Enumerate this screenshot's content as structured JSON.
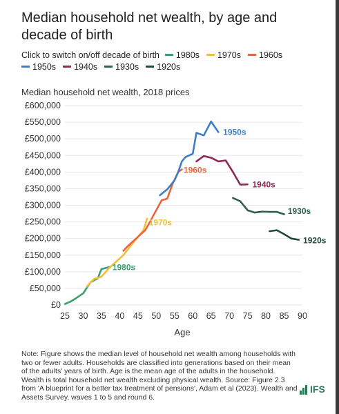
{
  "title": "Median household net wealth, by age and decade of birth",
  "legend": {
    "prompt": "Click to switch on/off decade of birth",
    "items": [
      {
        "label": "1980s",
        "color": "#3a9e6e"
      },
      {
        "label": "1970s",
        "color": "#f2bf3a"
      },
      {
        "label": "1960s",
        "color": "#e8643c"
      },
      {
        "label": "1950s",
        "color": "#3d7dc4"
      },
      {
        "label": "1940s",
        "color": "#8e2a56"
      },
      {
        "label": "1930s",
        "color": "#2f5f50"
      },
      {
        "label": "1920s",
        "color": "#1f4a3a"
      }
    ]
  },
  "subtitle": "Median household net wealth, 2018 prices",
  "xlabel": "Age",
  "note": "Note: Figure shows the median level of household net wealth among households with two or fewer adults. Households are classified into generations based on their mean of the adults' years of birth. Age is the mean age of the adults in the household. Wealth is total household net wealth excluding physical wealth. Source: Figure 2.3 from 'A blueprint for a better tax treatment of pensions', Adam et al (2023). Wealth and Assets Survey, waves 1 to 5 and round 6.",
  "logo": "IFS",
  "chart_data": {
    "type": "line",
    "title": "Median household net wealth, by age and decade of birth",
    "ylabel": "Median household net wealth, 2018 prices",
    "xlabel": "Age",
    "xlim": [
      25,
      90
    ],
    "ylim": [
      0,
      600000
    ],
    "x_ticks": [
      "25",
      "30",
      "35",
      "40",
      "45",
      "50",
      "55",
      "60",
      "65",
      "70",
      "75",
      "80",
      "85",
      "90"
    ],
    "y_ticks": [
      "£0",
      "£50,000",
      "£100,000",
      "£150,000",
      "£200,000",
      "£250,000",
      "£300,000",
      "£350,000",
      "£400,000",
      "£450,000",
      "£500,000",
      "£550,000",
      "£600,000"
    ],
    "grid": true,
    "series": [
      {
        "name": "1980s",
        "color": "#3a9e6e",
        "x": [
          25,
          26.5,
          28,
          30,
          32,
          34,
          35,
          37.5
        ],
        "y": [
          3000,
          10000,
          20000,
          35000,
          68000,
          80000,
          108000,
          115000
        ]
      },
      {
        "name": "1970s",
        "color": "#f2bf3a",
        "x": [
          31,
          32,
          33,
          35,
          37,
          39,
          41,
          43,
          45,
          46.5,
          47.5
        ],
        "y": [
          55000,
          68000,
          78000,
          85000,
          110000,
          130000,
          150000,
          178000,
          205000,
          225000,
          260000
        ]
      },
      {
        "name": "1960s",
        "color": "#e8643c",
        "x": [
          41,
          42,
          43.5,
          45,
          47,
          48.5,
          50,
          51.5,
          53,
          54.5,
          56,
          57
        ],
        "y": [
          163000,
          175000,
          190000,
          205000,
          225000,
          255000,
          285000,
          315000,
          320000,
          365000,
          400000,
          408000
        ]
      },
      {
        "name": "1950s",
        "color": "#3d7dc4",
        "x": [
          51,
          53,
          55,
          56,
          57,
          58,
          60,
          61,
          63,
          65,
          67
        ],
        "y": [
          330000,
          348000,
          375000,
          400000,
          432000,
          445000,
          455000,
          518000,
          510000,
          552000,
          520000
        ]
      },
      {
        "name": "1940s",
        "color": "#8e2a56",
        "x": [
          61,
          63,
          65,
          67,
          69,
          71,
          73,
          75
        ],
        "y": [
          432000,
          448000,
          443000,
          432000,
          435000,
          400000,
          362000,
          363000
        ]
      },
      {
        "name": "1930s",
        "color": "#2f5f50",
        "x": [
          71,
          73,
          75,
          77,
          79,
          81,
          83,
          85
        ],
        "y": [
          322000,
          312000,
          285000,
          278000,
          281000,
          280000,
          280000,
          273000
        ]
      },
      {
        "name": "1920s",
        "color": "#1f4a3a",
        "x": [
          81,
          83,
          85,
          87,
          89
        ],
        "y": [
          222000,
          225000,
          213000,
          200000,
          196000
        ]
      }
    ],
    "series_labels": [
      {
        "text": "1980s",
        "series": 0,
        "x": 38,
        "y": 113000
      },
      {
        "text": "1970s",
        "series": 1,
        "x": 48,
        "y": 248000
      },
      {
        "text": "1960s",
        "series": 2,
        "x": 57.5,
        "y": 406000
      },
      {
        "text": "1950s",
        "series": 3,
        "x": 68.3,
        "y": 520000
      },
      {
        "text": "1940s",
        "series": 4,
        "x": 76.3,
        "y": 362000
      },
      {
        "text": "1930s",
        "series": 5,
        "x": 86,
        "y": 282000
      },
      {
        "text": "1920s",
        "series": 6,
        "x": 90.2,
        "y": 194000
      }
    ]
  }
}
